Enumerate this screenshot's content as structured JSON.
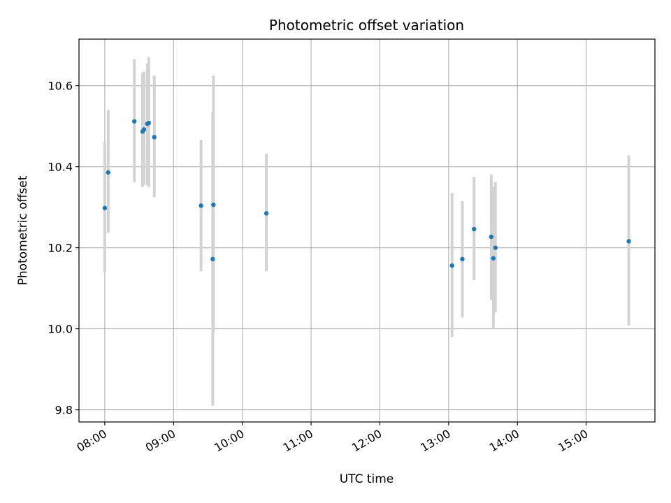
{
  "chart_data": {
    "type": "scatter",
    "title": "Photometric offset variation",
    "xlabel": "UTC time",
    "ylabel": "Photometric offset",
    "x_unit": "hours UTC",
    "xlim": [
      7.625,
      16.0
    ],
    "ylim": [
      9.77,
      10.715
    ],
    "grid": true,
    "x_ticks": [
      8,
      9,
      10,
      11,
      12,
      13,
      14,
      15
    ],
    "x_tick_labels": [
      "08:00",
      "09:00",
      "10:00",
      "11:00",
      "12:00",
      "13:00",
      "14:00",
      "15:00"
    ],
    "y_ticks": [
      9.8,
      10.0,
      10.2,
      10.4,
      10.6
    ],
    "y_tick_labels": [
      "9.8",
      "10.0",
      "10.2",
      "10.4",
      "10.6"
    ],
    "point_color": "#1f77b4",
    "errorbar_color": "#d3d3d3",
    "points": [
      {
        "x": 8.0,
        "y": 10.298,
        "lo": 10.14,
        "hi": 10.46
      },
      {
        "x": 8.05,
        "y": 10.386,
        "lo": 10.237,
        "hi": 10.54
      },
      {
        "x": 8.43,
        "y": 10.512,
        "lo": 10.362,
        "hi": 10.665
      },
      {
        "x": 8.55,
        "y": 10.487,
        "lo": 10.35,
        "hi": 10.632
      },
      {
        "x": 8.57,
        "y": 10.492,
        "lo": 10.355,
        "hi": 10.635
      },
      {
        "x": 8.62,
        "y": 10.506,
        "lo": 10.355,
        "hi": 10.655
      },
      {
        "x": 8.64,
        "y": 10.508,
        "lo": 10.35,
        "hi": 10.67
      },
      {
        "x": 8.72,
        "y": 10.473,
        "lo": 10.325,
        "hi": 10.625
      },
      {
        "x": 9.4,
        "y": 10.304,
        "lo": 10.142,
        "hi": 10.467
      },
      {
        "x": 9.57,
        "y": 10.172,
        "lo": 9.81,
        "hi": 10.535
      },
      {
        "x": 9.58,
        "y": 10.306,
        "lo": 9.99,
        "hi": 10.625
      },
      {
        "x": 10.35,
        "y": 10.285,
        "lo": 10.142,
        "hi": 10.432
      },
      {
        "x": 13.05,
        "y": 10.156,
        "lo": 9.98,
        "hi": 10.335
      },
      {
        "x": 13.2,
        "y": 10.172,
        "lo": 10.028,
        "hi": 10.315
      },
      {
        "x": 13.37,
        "y": 10.246,
        "lo": 10.12,
        "hi": 10.375
      },
      {
        "x": 13.62,
        "y": 10.227,
        "lo": 10.072,
        "hi": 10.38
      },
      {
        "x": 13.65,
        "y": 10.174,
        "lo": 10.0,
        "hi": 10.35
      },
      {
        "x": 13.68,
        "y": 10.2,
        "lo": 10.04,
        "hi": 10.362
      },
      {
        "x": 15.62,
        "y": 10.216,
        "lo": 10.008,
        "hi": 10.428
      }
    ]
  }
}
